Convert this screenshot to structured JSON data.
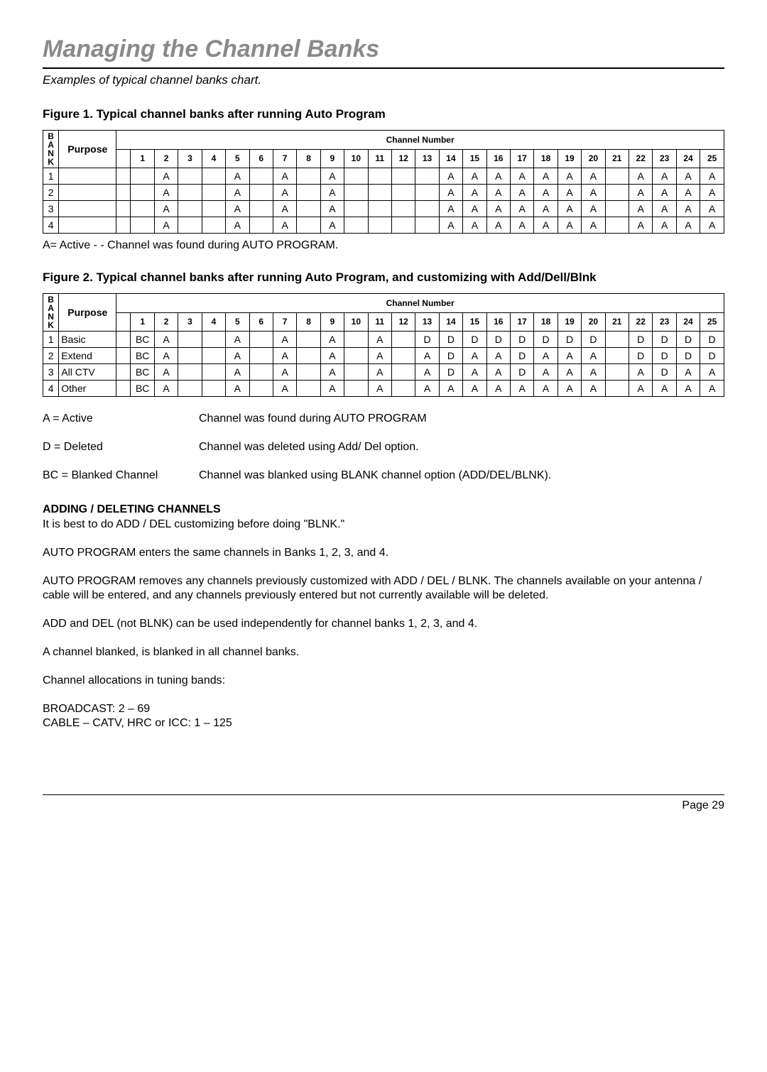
{
  "page_title": "Managing the Channel Banks",
  "subtitle": "Examples of typical channel banks chart.",
  "figure1": {
    "caption": "Figure 1.  Typical channel banks after running Auto Program",
    "bank_label": "B\nA\nN\nK",
    "purpose_label": "Purpose",
    "channel_header": "Channel Number",
    "channels": [
      "",
      "1",
      "2",
      "3",
      "4",
      "5",
      "6",
      "7",
      "8",
      "9",
      "10",
      "11",
      "12",
      "13",
      "14",
      "15",
      "16",
      "17",
      "18",
      "19",
      "20",
      "21",
      "22",
      "23",
      "24",
      "25"
    ],
    "rows": [
      {
        "bank": "1",
        "purpose": "",
        "cells": [
          "",
          "",
          "A",
          "",
          "",
          "A",
          "",
          "A",
          "",
          "A",
          "",
          "",
          "",
          "",
          "A",
          "A",
          "A",
          "A",
          "A",
          "A",
          "A",
          "",
          "A",
          "A",
          "A",
          "A"
        ]
      },
      {
        "bank": "2",
        "purpose": "",
        "cells": [
          "",
          "",
          "A",
          "",
          "",
          "A",
          "",
          "A",
          "",
          "A",
          "",
          "",
          "",
          "",
          "A",
          "A",
          "A",
          "A",
          "A",
          "A",
          "A",
          "",
          "A",
          "A",
          "A",
          "A"
        ]
      },
      {
        "bank": "3",
        "purpose": "",
        "cells": [
          "",
          "",
          "A",
          "",
          "",
          "A",
          "",
          "A",
          "",
          "A",
          "",
          "",
          "",
          "",
          "A",
          "A",
          "A",
          "A",
          "A",
          "A",
          "A",
          "",
          "A",
          "A",
          "A",
          "A"
        ]
      },
      {
        "bank": "4",
        "purpose": "",
        "cells": [
          "",
          "",
          "A",
          "",
          "",
          "A",
          "",
          "A",
          "",
          "A",
          "",
          "",
          "",
          "",
          "A",
          "A",
          "A",
          "A",
          "A",
          "A",
          "A",
          "",
          "A",
          "A",
          "A",
          "A"
        ]
      }
    ]
  },
  "note1": "A= Active - - Channel was found during AUTO PROGRAM.",
  "figure2": {
    "caption": "Figure 2.  Typical channel banks after running Auto Program, and customizing with Add/Dell/Blnk",
    "bank_label": "B\nA\nN\nK",
    "purpose_label": "Purpose",
    "channel_header": "Channel Number",
    "channels": [
      "",
      "1",
      "2",
      "3",
      "4",
      "5",
      "6",
      "7",
      "8",
      "9",
      "10",
      "11",
      "12",
      "13",
      "14",
      "15",
      "16",
      "17",
      "18",
      "19",
      "20",
      "21",
      "22",
      "23",
      "24",
      "25"
    ],
    "rows": [
      {
        "bank": "1",
        "purpose": "Basic",
        "cells": [
          "",
          "BC",
          "A",
          "",
          "",
          "A",
          "",
          "A",
          "",
          "A",
          "",
          "A",
          "",
          "D",
          "D",
          "D",
          "D",
          "D",
          "D",
          "D",
          "D",
          "",
          "D",
          "D",
          "D",
          "D"
        ]
      },
      {
        "bank": "2",
        "purpose": "Extend",
        "cells": [
          "",
          "BC",
          "A",
          "",
          "",
          "A",
          "",
          "A",
          "",
          "A",
          "",
          "A",
          "",
          "A",
          "D",
          "A",
          "A",
          "D",
          "A",
          "A",
          "A",
          "",
          "D",
          "D",
          "D",
          "D"
        ]
      },
      {
        "bank": "3",
        "purpose": "All CTV",
        "cells": [
          "",
          "BC",
          "A",
          "",
          "",
          "A",
          "",
          "A",
          "",
          "A",
          "",
          "A",
          "",
          "A",
          "D",
          "A",
          "A",
          "D",
          "A",
          "A",
          "A",
          "",
          "A",
          "D",
          "A",
          "A"
        ]
      },
      {
        "bank": "4",
        "purpose": "Other",
        "cells": [
          "",
          "BC",
          "A",
          "",
          "",
          "A",
          "",
          "A",
          "",
          "A",
          "",
          "A",
          "",
          "A",
          "A",
          "A",
          "A",
          "A",
          "A",
          "A",
          "A",
          "",
          "A",
          "A",
          "A",
          "A"
        ]
      }
    ]
  },
  "legend": [
    {
      "key": "A = Active",
      "desc": "Channel was found during AUTO PROGRAM"
    },
    {
      "key": "D = Deleted",
      "desc": "Channel was deleted using Add/ Del option."
    },
    {
      "key": "BC = Blanked Channel",
      "desc": "Channel was blanked using BLANK channel option (ADD/DEL/BLNK)."
    }
  ],
  "section_head": "ADDING / DELETING CHANNELS",
  "body": [
    "It is best to do ADD / DEL customizing before doing \"BLNK.\"",
    "AUTO PROGRAM enters the same channels in Banks 1, 2, 3, and 4.",
    "AUTO PROGRAM removes any channels previously customized with ADD / DEL / BLNK. The channels available on your antenna / cable will be entered, and any channels previously entered but not currently available will be deleted.",
    "ADD and DEL (not BLNK) can be used independently for channel banks 1, 2, 3, and 4.",
    "A channel blanked, is blanked in all channel banks.",
    "Channel allocations in tuning bands:",
    "BROADCAST: 2 – 69\nCABLE – CATV, HRC or ICC: 1 – 125"
  ],
  "page_number": "Page 29"
}
